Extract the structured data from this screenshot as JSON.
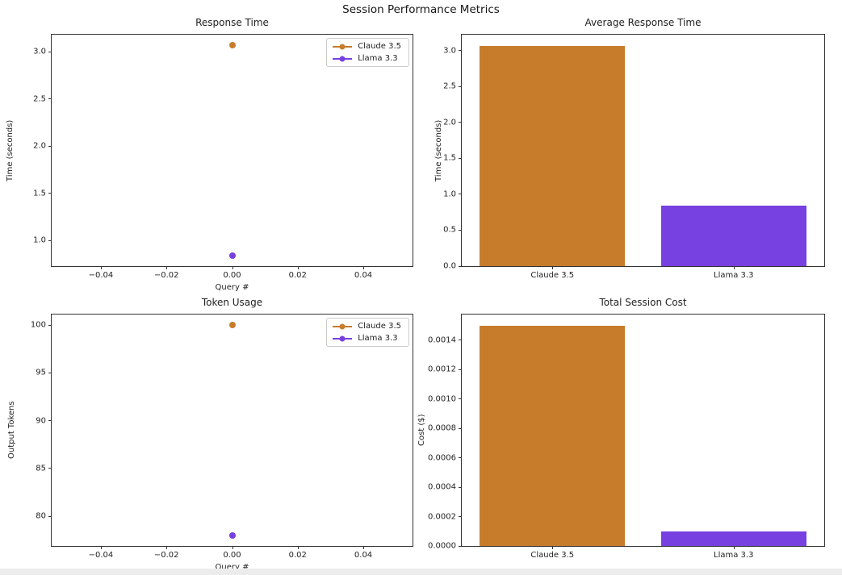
{
  "figure": {
    "suptitle": "Session Performance Metrics"
  },
  "colors": {
    "claude": "#c77c2c",
    "llama": "#7740e0",
    "spine": "#333333",
    "text": "#1f1f1f",
    "legend_border": "#cccccc",
    "background": "#ffffff"
  },
  "chart_data": [
    {
      "type": "scatter",
      "title": "Response Time",
      "xlabel": "Query #",
      "ylabel": "Time (seconds)",
      "xlim": [
        -0.055,
        0.055
      ],
      "ylim": [
        0.729,
        3.182
      ],
      "xticks": [
        -0.04,
        -0.02,
        0.0,
        0.02,
        0.04
      ],
      "xtick_labels": [
        "−0.04",
        "−0.02",
        "0.00",
        "0.02",
        "0.04"
      ],
      "yticks": [
        1.0,
        1.5,
        2.0,
        2.5,
        3.0
      ],
      "ytick_labels": [
        "1.0",
        "1.5",
        "2.0",
        "2.5",
        "3.0"
      ],
      "legend": true,
      "legend_position": "top-right",
      "grid": false,
      "series": [
        {
          "name": "Claude 3.5",
          "color": "claude",
          "x": [
            0.0
          ],
          "y": [
            3.07
          ]
        },
        {
          "name": "Llama 3.3",
          "color": "llama",
          "x": [
            0.0
          ],
          "y": [
            0.84
          ]
        }
      ]
    },
    {
      "type": "bar",
      "title": "Average Response Time",
      "xlabel": "",
      "ylabel": "Time (seconds)",
      "ylim": [
        0,
        3.2235
      ],
      "categories": [
        "Claude 3.5",
        "Llama 3.3"
      ],
      "values": [
        3.07,
        0.84
      ],
      "bar_colors": [
        "claude",
        "llama"
      ],
      "yticks": [
        0.0,
        0.5,
        1.0,
        1.5,
        2.0,
        2.5,
        3.0
      ],
      "ytick_labels": [
        "0.0",
        "0.5",
        "1.0",
        "1.5",
        "2.0",
        "2.5",
        "3.0"
      ],
      "legend": false,
      "grid": false
    },
    {
      "type": "scatter",
      "title": "Token Usage",
      "xlabel": "Query #",
      "ylabel": "Output Tokens",
      "xlim": [
        -0.055,
        0.055
      ],
      "ylim": [
        76.9,
        101.1
      ],
      "xticks": [
        -0.04,
        -0.02,
        0.0,
        0.02,
        0.04
      ],
      "xtick_labels": [
        "−0.04",
        "−0.02",
        "0.00",
        "0.02",
        "0.04"
      ],
      "yticks": [
        80,
        85,
        90,
        95,
        100
      ],
      "ytick_labels": [
        "80",
        "85",
        "90",
        "95",
        "100"
      ],
      "legend": true,
      "legend_position": "top-right",
      "grid": false,
      "series": [
        {
          "name": "Claude 3.5",
          "color": "claude",
          "x": [
            0.0
          ],
          "y": [
            100
          ]
        },
        {
          "name": "Llama 3.3",
          "color": "llama",
          "x": [
            0.0
          ],
          "y": [
            78
          ]
        }
      ]
    },
    {
      "type": "bar",
      "title": "Total Session Cost",
      "xlabel": "",
      "ylabel": "Cost ($)",
      "ylim": [
        0,
        0.001575
      ],
      "categories": [
        "Claude 3.5",
        "Llama 3.3"
      ],
      "values": [
        0.0015,
        0.0001
      ],
      "bar_colors": [
        "claude",
        "llama"
      ],
      "yticks": [
        0.0,
        0.0002,
        0.0004,
        0.0006,
        0.0008,
        0.001,
        0.0012,
        0.0014
      ],
      "ytick_labels": [
        "0.0000",
        "0.0002",
        "0.0004",
        "0.0006",
        "0.0008",
        "0.0010",
        "0.0012",
        "0.0014"
      ],
      "legend": false,
      "grid": false
    }
  ]
}
